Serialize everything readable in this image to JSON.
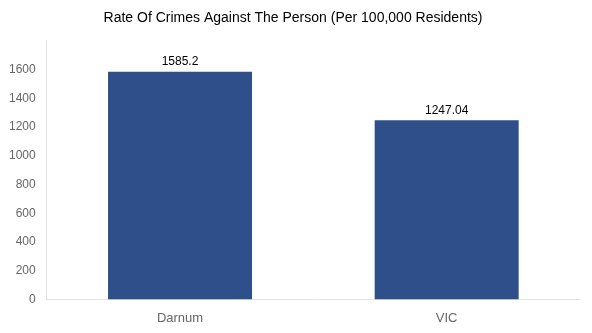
{
  "chart_data": {
    "type": "bar",
    "title": "Rate Of Crimes Against The Person (Per 100,000 Residents)",
    "categories": [
      "Darnum",
      "VIC"
    ],
    "values": [
      1585.2,
      1247.04
    ],
    "color": "#2e4f8a",
    "ylim": [
      0,
      1800
    ],
    "yticks": [
      0,
      200,
      400,
      600,
      800,
      1000,
      1200,
      1400,
      1600
    ],
    "grid": false,
    "data_labels": true
  }
}
